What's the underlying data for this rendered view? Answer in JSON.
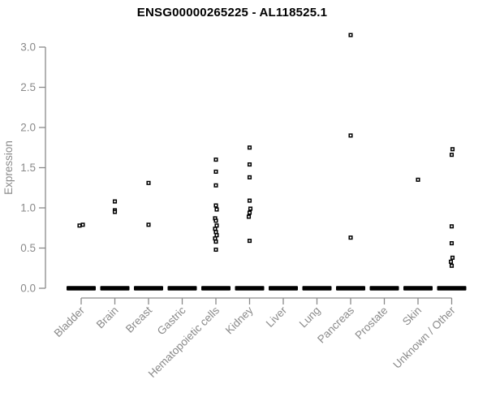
{
  "chart_data": {
    "type": "scatter",
    "title": "ENSG00000265225 - AL118525.1",
    "xlabel": "",
    "ylabel": "Expression",
    "ylim": [
      0.0,
      3.0
    ],
    "yticks": [
      0.0,
      0.5,
      1.0,
      1.5,
      2.0,
      2.5,
      3.0
    ],
    "ytick_labels": [
      "0.0",
      "0.5",
      "1.0",
      "1.5",
      "2.0",
      "2.5",
      "3.0"
    ],
    "grid": false,
    "legend": "none",
    "marker": "open-square",
    "colors": {
      "points": "#000000",
      "axis": "#8a8a8a",
      "tick_labels": "#8a8a8a",
      "title": "#000000",
      "background": "#ffffff"
    },
    "note": "each category also shows a dense cluster of many points at expression 0 (rendered as a thick black bar)",
    "categories": [
      {
        "label": "Bladder",
        "zero_cluster": true,
        "points": [
          [
            0.79,
            2
          ],
          [
            0.78,
            -2
          ]
        ]
      },
      {
        "label": "Brain",
        "zero_cluster": true,
        "points": [
          [
            1.08,
            0
          ],
          [
            0.97,
            0
          ],
          [
            0.95,
            0
          ]
        ]
      },
      {
        "label": "Breast",
        "zero_cluster": true,
        "points": [
          [
            1.31,
            0
          ],
          [
            0.79,
            0
          ]
        ]
      },
      {
        "label": "Gastric",
        "zero_cluster": true,
        "points": []
      },
      {
        "label": "Hematopoietic cells",
        "zero_cluster": true,
        "points": [
          [
            1.6,
            0
          ],
          [
            1.45,
            0
          ],
          [
            1.28,
            0
          ],
          [
            1.03,
            0
          ],
          [
            0.98,
            1
          ],
          [
            0.87,
            -1
          ],
          [
            0.84,
            0
          ],
          [
            0.78,
            1
          ],
          [
            0.74,
            -1
          ],
          [
            0.7,
            0
          ],
          [
            0.66,
            1
          ],
          [
            0.62,
            -1
          ],
          [
            0.58,
            0
          ],
          [
            0.48,
            0
          ]
        ]
      },
      {
        "label": "Kidney",
        "zero_cluster": true,
        "points": [
          [
            1.75,
            0
          ],
          [
            1.54,
            0
          ],
          [
            1.38,
            0
          ],
          [
            1.09,
            0
          ],
          [
            0.99,
            1
          ],
          [
            0.94,
            0
          ],
          [
            0.89,
            -1
          ],
          [
            0.59,
            0
          ]
        ]
      },
      {
        "label": "Liver",
        "zero_cluster": true,
        "points": []
      },
      {
        "label": "Lung",
        "zero_cluster": true,
        "points": []
      },
      {
        "label": "Pancreas",
        "zero_cluster": true,
        "points": [
          [
            3.15,
            0
          ],
          [
            1.9,
            0
          ],
          [
            0.63,
            0
          ]
        ]
      },
      {
        "label": "Prostate",
        "zero_cluster": true,
        "points": []
      },
      {
        "label": "Skin",
        "zero_cluster": true,
        "points": [
          [
            1.35,
            0
          ]
        ]
      },
      {
        "label": "Unknown / Other",
        "zero_cluster": true,
        "points": [
          [
            1.73,
            1
          ],
          [
            1.66,
            0
          ],
          [
            0.77,
            0
          ],
          [
            0.56,
            0
          ],
          [
            0.38,
            1
          ],
          [
            0.33,
            -1
          ],
          [
            0.28,
            0
          ]
        ]
      }
    ]
  }
}
